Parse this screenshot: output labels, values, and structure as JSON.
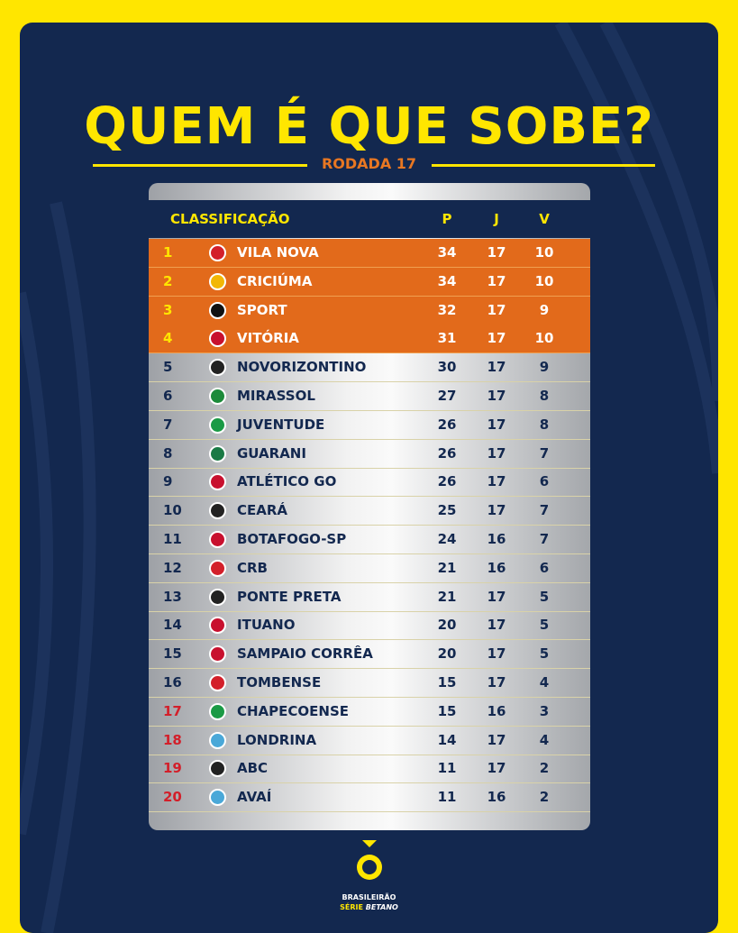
{
  "header": {
    "title": "QUEM É QUE SOBE?",
    "subtitle": "RODADA 17"
  },
  "table": {
    "columns": [
      "CLASSIFICAÇÃO",
      "P",
      "J",
      "V"
    ],
    "rows": [
      [
        1,
        "VILA NOVA",
        34,
        17,
        10
      ],
      [
        2,
        "CRICIÚMA",
        34,
        17,
        10
      ],
      [
        3,
        "SPORT",
        32,
        17,
        9
      ],
      [
        4,
        "VITÓRIA",
        31,
        17,
        10
      ],
      [
        5,
        "NOVORIZONTINO",
        30,
        17,
        9
      ],
      [
        6,
        "MIRASSOL",
        27,
        17,
        8
      ],
      [
        7,
        "JUVENTUDE",
        26,
        17,
        8
      ],
      [
        8,
        "GUARANI",
        26,
        17,
        7
      ],
      [
        9,
        "ATLÉTICO GO",
        26,
        17,
        6
      ],
      [
        10,
        "CEARÁ",
        25,
        17,
        7
      ],
      [
        11,
        "BOTAFOGO-SP",
        24,
        16,
        7
      ],
      [
        12,
        "CRB",
        21,
        16,
        6
      ],
      [
        13,
        "PONTE PRETA",
        21,
        17,
        5
      ],
      [
        14,
        "ITUANO",
        20,
        17,
        5
      ],
      [
        15,
        "SAMPAIO CORRÊA",
        20,
        17,
        5
      ],
      [
        16,
        "TOMBENSE",
        15,
        17,
        4
      ],
      [
        17,
        "CHAPECOENSE",
        15,
        16,
        3
      ],
      [
        18,
        "LONDRINA",
        14,
        17,
        4
      ],
      [
        19,
        "ABC",
        11,
        17,
        2
      ],
      [
        20,
        "AVAÍ",
        11,
        16,
        2
      ]
    ]
  },
  "footer": {
    "brand": "BRASILEIRÃO",
    "series": "SÉRIE",
    "sponsor": "BETANO"
  }
}
